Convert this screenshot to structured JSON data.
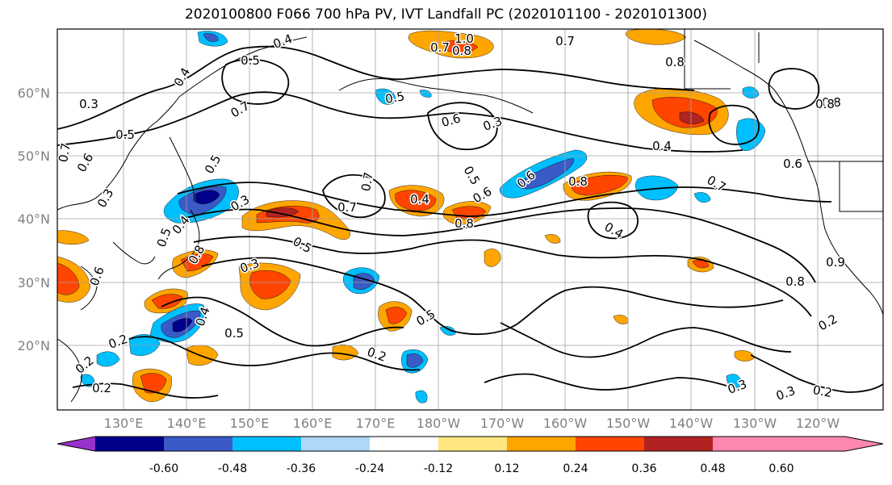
{
  "title": "2020100800 F066 700 hPa PV, IVT Landfall PC (2020101100 - 2020101300)",
  "lat_labels": [
    "60°N",
    "50°N",
    "40°N",
    "30°N",
    "20°N"
  ],
  "lon_labels": [
    "130°E",
    "140°E",
    "150°E",
    "160°E",
    "170°E",
    "180°W",
    "170°W",
    "160°W",
    "150°W",
    "140°W",
    "130°W",
    "120°W"
  ],
  "contour_labels": [
    "0.4",
    "0.5",
    "0.7",
    "1.0",
    "0.7",
    "0.8",
    "0.5",
    "0.6",
    "0.7",
    "0.4",
    "0.3",
    "0.8",
    "0.5",
    "0.6",
    "0.7",
    "0.6",
    "0.3",
    "0.5",
    "0.4",
    "0.5",
    "0.7",
    "0.8",
    "0.8",
    "0.6",
    "0.7",
    "0.6",
    "0.3",
    "0.5",
    "0.8",
    "0.4",
    "0.7",
    "0.4",
    "0.5",
    "0.3",
    "0.3",
    "0.8",
    "0.4",
    "0.8",
    "0.2",
    "0.6",
    "0.4",
    "0.5",
    "0.2",
    "0.5",
    "0.2",
    "0.2",
    "0.3",
    "0.2",
    "0.3",
    "0.2",
    "0.9",
    "0.8"
  ],
  "colorbar": {
    "ticks": [
      "-0.60",
      "-0.48",
      "-0.36",
      "-0.24",
      "-0.12",
      "0.12",
      "0.24",
      "0.36",
      "0.48",
      "0.60"
    ],
    "colors": [
      "#9932cc",
      "#00008b",
      "#3a5bc7",
      "#00bfff",
      "#add8f7",
      "#ffffff",
      "#ffe680",
      "#ffa500",
      "#ff4500",
      "#b22222",
      "#ff88b0"
    ]
  }
}
